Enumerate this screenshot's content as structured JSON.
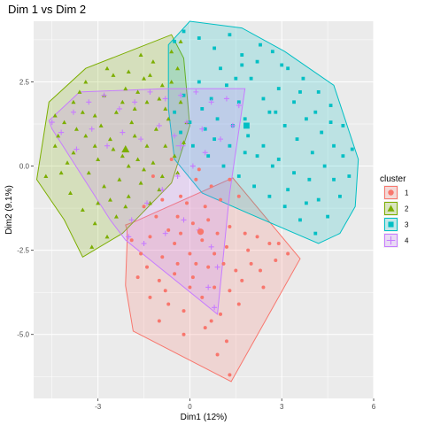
{
  "chart_data": {
    "type": "scatter",
    "title": "Dim 1 vs Dim 2",
    "xlabel": "Dim1 (12%)",
    "ylabel": "Dim2 (9.1%)",
    "xlim": [
      -5.1,
      6.0
    ],
    "ylim": [
      -6.9,
      4.3
    ],
    "x_ticks": [
      -3,
      0,
      3,
      6
    ],
    "y_ticks": [
      -5.0,
      -2.5,
      0.0,
      2.5
    ],
    "x_tick_labels": [
      "-3",
      "0",
      "3",
      "6"
    ],
    "y_tick_labels": [
      "-5.0",
      "-2.5",
      "0.0",
      "2.5"
    ],
    "grid": true,
    "panel_background": "#ebebeb",
    "legend": {
      "title": "cluster",
      "placement": "right",
      "entries": [
        "1",
        "2",
        "3",
        "4"
      ]
    },
    "series": [
      {
        "name": "1",
        "color": "#F8766D",
        "marker": "circle",
        "hull": [
          [
            -2.1,
            -1.75
          ],
          [
            -2.05,
            -1.9
          ],
          [
            -2.05,
            -2.3
          ],
          [
            -2.1,
            -3.5
          ],
          [
            -2.1,
            -3.55
          ],
          [
            -1.85,
            -4.9
          ],
          [
            1.35,
            -6.4
          ],
          [
            3.6,
            -2.75
          ],
          [
            1.4,
            -0.35
          ],
          [
            -1.8,
            -1.65
          ]
        ],
        "center": [
          0.35,
          -1.95
        ],
        "points": [
          [
            -1.2,
            -0.3
          ],
          [
            -0.6,
            0.2
          ],
          [
            -0.3,
            -0.9
          ],
          [
            -0.9,
            -1.0
          ],
          [
            -1.5,
            -1.2
          ],
          [
            -0.4,
            -1.5
          ],
          [
            0.1,
            -1.7
          ],
          [
            0.5,
            -1.2
          ],
          [
            1.0,
            -1.0
          ],
          [
            0.7,
            -0.6
          ],
          [
            0.2,
            -0.4
          ],
          [
            -0.7,
            -1.9
          ],
          [
            -1.3,
            -2.1
          ],
          [
            -1.6,
            -2.6
          ],
          [
            -0.9,
            -2.7
          ],
          [
            -0.5,
            -2.3
          ],
          [
            0.0,
            -2.6
          ],
          [
            0.4,
            -2.2
          ],
          [
            0.9,
            -2.0
          ],
          [
            1.3,
            -1.8
          ],
          [
            1.8,
            -2.0
          ],
          [
            2.2,
            -2.1
          ],
          [
            2.6,
            -2.3
          ],
          [
            2.0,
            -2.9
          ],
          [
            1.5,
            -3.1
          ],
          [
            1.1,
            -2.9
          ],
          [
            0.6,
            -3.0
          ],
          [
            0.1,
            -3.3
          ],
          [
            -0.5,
            -3.2
          ],
          [
            -1.0,
            -3.4
          ],
          [
            -1.7,
            -3.3
          ],
          [
            -1.3,
            -3.9
          ],
          [
            -0.7,
            -4.1
          ],
          [
            -0.2,
            -4.3
          ],
          [
            0.4,
            -3.9
          ],
          [
            0.8,
            -3.6
          ],
          [
            1.3,
            -3.7
          ],
          [
            1.7,
            -3.4
          ],
          [
            2.3,
            -3.1
          ],
          [
            2.8,
            -2.8
          ],
          [
            3.2,
            -2.6
          ],
          [
            1.0,
            -4.4
          ],
          [
            0.5,
            -4.8
          ],
          [
            1.2,
            -5.2
          ],
          [
            0.9,
            -5.6
          ],
          [
            1.3,
            -6.2
          ],
          [
            -0.2,
            -5.0
          ],
          [
            -1.0,
            -4.6
          ],
          [
            0.3,
            -0.1
          ],
          [
            1.3,
            -0.4
          ],
          [
            1.6,
            -0.9
          ],
          [
            -0.1,
            -1.1
          ],
          [
            0.6,
            -1.6
          ],
          [
            -1.1,
            -1.5
          ],
          [
            2.4,
            -3.6
          ],
          [
            1.9,
            -2.5
          ],
          [
            -0.3,
            -2.0
          ],
          [
            0.2,
            -2.9
          ],
          [
            -0.8,
            -3.7
          ],
          [
            1.6,
            -4.1
          ],
          [
            -1.9,
            -2.2
          ],
          [
            2.9,
            -2.3
          ],
          [
            1.2,
            -2.4
          ],
          [
            0.8,
            -2.6
          ],
          [
            -0.4,
            -2.9
          ],
          [
            -1.4,
            -3.0
          ],
          [
            0.0,
            -3.6
          ],
          [
            0.7,
            -4.6
          ]
        ]
      },
      {
        "name": "2",
        "color": "#7CAE00",
        "marker": "triangle",
        "hull": [
          [
            -5.0,
            -0.4
          ],
          [
            -4.6,
            1.9
          ],
          [
            -3.4,
            2.9
          ],
          [
            -0.6,
            3.9
          ],
          [
            -0.2,
            3.2
          ],
          [
            0.0,
            1.2
          ],
          [
            -0.6,
            -0.5
          ],
          [
            -2.2,
            -2.0
          ],
          [
            -3.5,
            -2.7
          ],
          [
            -4.1,
            -1.6
          ]
        ],
        "center": [
          -2.1,
          0.5
        ],
        "points": [
          [
            -4.7,
            -0.3
          ],
          [
            -4.4,
            0.6
          ],
          [
            -4.1,
            1.3
          ],
          [
            -3.8,
            1.9
          ],
          [
            -3.4,
            2.5
          ],
          [
            -3.1,
            1.5
          ],
          [
            -2.8,
            2.1
          ],
          [
            -2.5,
            2.7
          ],
          [
            -2.1,
            2.3
          ],
          [
            -1.8,
            1.7
          ],
          [
            -1.5,
            2.6
          ],
          [
            -1.2,
            3.1
          ],
          [
            -0.9,
            2.4
          ],
          [
            -0.6,
            3.4
          ],
          [
            -0.4,
            2.9
          ],
          [
            -0.3,
            1.9
          ],
          [
            -0.7,
            1.4
          ],
          [
            -1.1,
            1.1
          ],
          [
            -1.4,
            0.6
          ],
          [
            -1.8,
            0.9
          ],
          [
            -2.2,
            0.3
          ],
          [
            -2.6,
            0.8
          ],
          [
            -3.0,
            0.2
          ],
          [
            -3.4,
            0.9
          ],
          [
            -3.8,
            0.4
          ],
          [
            -4.2,
            -0.2
          ],
          [
            -3.9,
            -0.8
          ],
          [
            -3.5,
            -1.3
          ],
          [
            -3.1,
            -1.7
          ],
          [
            -2.7,
            -2.1
          ],
          [
            -3.2,
            -2.4
          ],
          [
            -2.4,
            -1.5
          ],
          [
            -2.0,
            -0.9
          ],
          [
            -1.6,
            -0.5
          ],
          [
            -1.3,
            -1.1
          ],
          [
            -0.9,
            -0.3
          ],
          [
            -0.5,
            0.3
          ],
          [
            -0.2,
            0.7
          ],
          [
            -0.8,
            0.6
          ],
          [
            -1.2,
            0.1
          ],
          [
            -1.7,
            0.2
          ],
          [
            -2.3,
            -0.4
          ],
          [
            -2.8,
            -0.6
          ],
          [
            -3.3,
            -0.2
          ],
          [
            -3.7,
            1.1
          ],
          [
            -2.9,
            1.2
          ],
          [
            -2.4,
            1.6
          ],
          [
            -1.9,
            1.3
          ],
          [
            -1.4,
            1.9
          ],
          [
            -1.0,
            2.0
          ],
          [
            -0.6,
            2.5
          ],
          [
            -2.0,
            2.8
          ],
          [
            -2.7,
            2.9
          ],
          [
            -3.6,
            2.2
          ],
          [
            -4.4,
            1.5
          ],
          [
            -1.6,
            3.3
          ],
          [
            -0.3,
            3.7
          ],
          [
            -0.1,
            1.3
          ],
          [
            -0.4,
            -0.2
          ],
          [
            -1.0,
            -0.7
          ],
          [
            -2.1,
            -1.2
          ],
          [
            -2.6,
            -1.0
          ],
          [
            -3.0,
            -1.1
          ],
          [
            -4.0,
            0.1
          ],
          [
            -3.5,
            1.6
          ],
          [
            -1.3,
            2.7
          ],
          [
            -2.2,
            1.9
          ],
          [
            -1.7,
            2.2
          ],
          [
            -0.8,
            1.7
          ],
          [
            -2.5,
            0.5
          ],
          [
            -2.0,
            0.0
          ],
          [
            -1.5,
            -0.1
          ],
          [
            -3.1,
            0.6
          ],
          [
            -4.3,
            0.9
          ]
        ]
      },
      {
        "name": "3",
        "color": "#00BFC4",
        "marker": "square",
        "hull": [
          [
            -0.7,
            3.6
          ],
          [
            0.0,
            4.3
          ],
          [
            1.7,
            4.1
          ],
          [
            3.1,
            3.4
          ],
          [
            4.7,
            2.4
          ],
          [
            5.5,
            0.2
          ],
          [
            5.4,
            -1.2
          ],
          [
            4.9,
            -2.0
          ],
          [
            4.2,
            -2.3
          ],
          [
            1.9,
            -1.4
          ],
          [
            0.4,
            -0.8
          ],
          [
            -0.5,
            0.2
          ],
          [
            -0.7,
            1.7
          ]
        ],
        "center": [
          1.85,
          1.2
        ],
        "points": [
          [
            -0.5,
            3.7
          ],
          [
            -0.2,
            4.0
          ],
          [
            0.3,
            3.8
          ],
          [
            0.8,
            3.5
          ],
          [
            1.3,
            3.9
          ],
          [
            1.7,
            3.3
          ],
          [
            2.2,
            3.1
          ],
          [
            2.7,
            3.4
          ],
          [
            3.2,
            2.9
          ],
          [
            3.7,
            2.6
          ],
          [
            4.2,
            2.2
          ],
          [
            4.6,
            1.8
          ],
          [
            5.0,
            1.2
          ],
          [
            5.3,
            0.5
          ],
          [
            5.2,
            -0.3
          ],
          [
            4.9,
            -0.9
          ],
          [
            4.5,
            -1.5
          ],
          [
            4.1,
            -2.0
          ],
          [
            3.6,
            -1.6
          ],
          [
            3.1,
            -1.2
          ],
          [
            2.6,
            -0.9
          ],
          [
            2.1,
            -0.6
          ],
          [
            1.6,
            -0.3
          ],
          [
            1.1,
            0.0
          ],
          [
            0.6,
            0.3
          ],
          [
            0.1,
            0.6
          ],
          [
            -0.3,
            1.0
          ],
          [
            -0.5,
            1.6
          ],
          [
            -0.2,
            2.1
          ],
          [
            0.3,
            2.5
          ],
          [
            0.7,
            2.0
          ],
          [
            1.2,
            2.4
          ],
          [
            1.6,
            1.9
          ],
          [
            2.0,
            2.6
          ],
          [
            2.4,
            2.0
          ],
          [
            2.9,
            2.3
          ],
          [
            3.4,
            1.9
          ],
          [
            3.8,
            1.4
          ],
          [
            4.3,
            1.0
          ],
          [
            4.7,
            0.6
          ],
          [
            4.4,
            0.0
          ],
          [
            3.9,
            -0.4
          ],
          [
            3.4,
            -0.2
          ],
          [
            2.9,
            0.2
          ],
          [
            2.4,
            0.6
          ],
          [
            1.9,
            0.9
          ],
          [
            1.4,
            1.2
          ],
          [
            0.9,
            1.4
          ],
          [
            0.4,
            1.7
          ],
          [
            0.0,
            1.3
          ],
          [
            1.7,
            3.0
          ],
          [
            2.3,
            3.6
          ],
          [
            3.0,
            3.0
          ],
          [
            3.6,
            2.2
          ],
          [
            4.1,
            1.6
          ],
          [
            4.6,
            1.3
          ],
          [
            5.0,
            0.3
          ],
          [
            4.7,
            -0.4
          ],
          [
            3.2,
            -0.7
          ],
          [
            2.7,
            0.0
          ],
          [
            2.2,
            0.3
          ],
          [
            1.8,
            0.4
          ],
          [
            1.3,
            0.6
          ],
          [
            0.8,
            0.8
          ],
          [
            0.5,
            1.1
          ],
          [
            1.0,
            2.9
          ],
          [
            1.5,
            2.6
          ],
          [
            2.6,
            1.6
          ],
          [
            3.1,
            1.2
          ],
          [
            3.5,
            0.8
          ],
          [
            4.0,
            0.4
          ],
          [
            4.2,
            -1.0
          ],
          [
            3.8,
            -1.1
          ],
          [
            2.8,
            1.6
          ],
          [
            1.8,
            1.4
          ]
        ]
      },
      {
        "name": "4",
        "color": "#C77CFF",
        "marker": "plus",
        "hull": [
          [
            -4.6,
            1.35
          ],
          [
            -3.6,
            2.2
          ],
          [
            -0.8,
            2.3
          ],
          [
            1.8,
            2.3
          ],
          [
            1.3,
            -0.8
          ],
          [
            0.9,
            -4.4
          ],
          [
            -2.1,
            -2.2
          ],
          [
            -2.6,
            -1.6
          ],
          [
            -4.5,
            1.1
          ]
        ],
        "center": [
          -0.3,
          0.6
        ],
        "points": [
          [
            -4.5,
            1.3
          ],
          [
            -4.2,
            1.0
          ],
          [
            -3.8,
            1.6
          ],
          [
            -3.3,
            1.9
          ],
          [
            -2.8,
            2.1
          ],
          [
            -2.3,
            1.7
          ],
          [
            -1.8,
            1.9
          ],
          [
            -1.3,
            2.2
          ],
          [
            -0.8,
            2.0
          ],
          [
            -0.3,
            2.1
          ],
          [
            0.2,
            2.2
          ],
          [
            0.7,
            1.9
          ],
          [
            1.2,
            2.0
          ],
          [
            1.6,
            1.8
          ],
          [
            1.4,
            1.2
          ],
          [
            1.0,
            0.8
          ],
          [
            0.5,
            0.4
          ],
          [
            0.1,
            0.0
          ],
          [
            -0.4,
            -0.3
          ],
          [
            -0.9,
            -0.7
          ],
          [
            -1.4,
            -1.1
          ],
          [
            -1.9,
            -1.6
          ],
          [
            -2.0,
            -2.1
          ],
          [
            -1.5,
            -2.3
          ],
          [
            -0.8,
            -2.0
          ],
          [
            -0.2,
            -1.6
          ],
          [
            0.3,
            -1.9
          ],
          [
            0.7,
            -2.4
          ],
          [
            0.9,
            -3.0
          ],
          [
            0.6,
            -3.6
          ],
          [
            0.8,
            -4.2
          ],
          [
            -0.5,
            0.9
          ],
          [
            -1.0,
            1.2
          ],
          [
            -1.6,
            0.8
          ],
          [
            -2.2,
            1.0
          ],
          [
            -2.7,
            0.6
          ],
          [
            -3.2,
            1.1
          ],
          [
            -3.7,
            0.5
          ],
          [
            -0.1,
            1.3
          ],
          [
            0.4,
            1.1
          ]
        ]
      }
    ]
  }
}
